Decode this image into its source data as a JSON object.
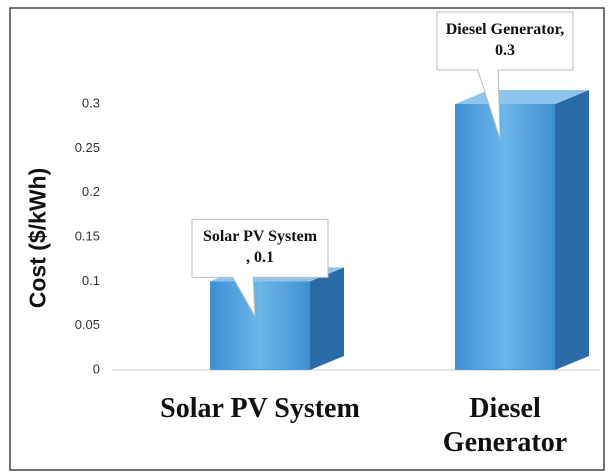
{
  "chart_data": {
    "type": "bar3d",
    "y_label": "Cost ($/kWh)",
    "categories": [
      "Solar PV System",
      "Diesel Generator"
    ],
    "values": [
      0.1,
      0.3
    ],
    "value_labels": [
      "Solar PV System , 0.1",
      "Diesel Generator, 0.3"
    ],
    "color": "#4a9ad8",
    "ylim": [
      0,
      0.35
    ],
    "yticks": [
      0,
      0.05,
      0.1,
      0.15,
      0.2,
      0.25,
      0.3
    ]
  }
}
